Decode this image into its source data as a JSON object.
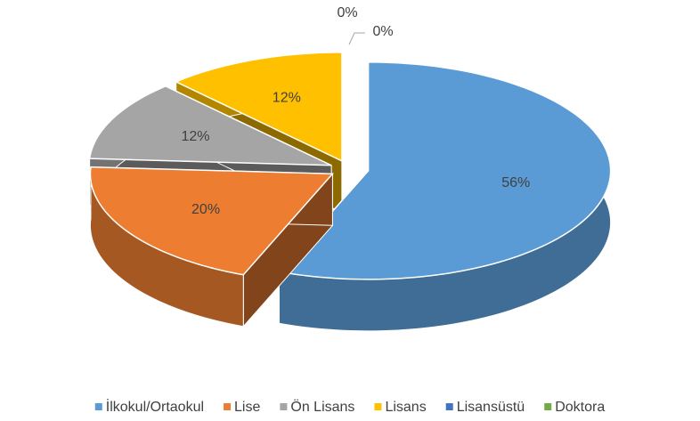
{
  "chart_data": {
    "type": "pie",
    "categories": [
      "İlkokul/Ortaokul",
      "Lise",
      "Ön Lisans",
      "Lisans",
      "Lisansüstü",
      "Doktora"
    ],
    "values": [
      56,
      20,
      12,
      12,
      0,
      0
    ],
    "value_labels": [
      "56%",
      "20%",
      "12%",
      "12%",
      "0%",
      "0%"
    ],
    "colors": [
      "#5b9bd5",
      "#ed7d31",
      "#a5a5a5",
      "#ffc000",
      "#4472c4",
      "#70ad47"
    ],
    "legend": "bottom"
  }
}
